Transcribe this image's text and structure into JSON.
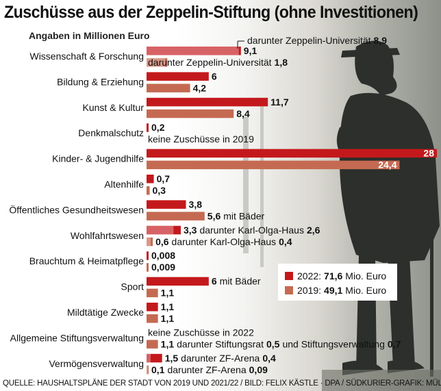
{
  "title": "Zuschüsse aus der Zeppelin-Stiftung (ohne Investitionen)",
  "subtitle": "Angaben in Millionen Euro",
  "footer": "QUELLE: HAUSHALTSPLÄNE DER STADT VON 2019 UND 2021/22 / BILD: FELIX KÄSTLE · DPA / SÜDKURIER-GRAFIK: MÜLLER",
  "colors": {
    "series_2022": "#c4191c",
    "series_2019": "#c56a52"
  },
  "legend": [
    {
      "year": "2022:",
      "value": "71,6",
      "unit": "Mio. Euro"
    },
    {
      "year": "2019:",
      "value": "49,1",
      "unit": "Mio. Euro"
    }
  ],
  "chart_data": {
    "type": "bar",
    "orientation": "horizontal",
    "title": "Zuschüsse aus der Zeppelin-Stiftung (ohne Investitionen)",
    "subtitle": "Angaben in Millionen Euro",
    "xlim": [
      0,
      28
    ],
    "grid": false,
    "legend_position": "bottom-right",
    "series": [
      {
        "name": "2022",
        "color": "#c4191c"
      },
      {
        "name": "2019",
        "color": "#c56a52"
      }
    ],
    "categories": [
      {
        "label": "Wissenschaft & Forschung",
        "v2022": 9.1,
        "t2022": "9,1",
        "sub2022": 8.9,
        "above2022": {
          "pre": "darunter Zeppelin-Universität",
          "val": "8,9"
        },
        "v2019": 2,
        "t2019": "2",
        "sub2019": 1.8,
        "n2019": {
          "pre": "darunter Zeppelin-Universität",
          "val": "1,8"
        }
      },
      {
        "label": "Bildung & Erziehung",
        "v2022": 6,
        "t2022": "6",
        "v2019": 4.2,
        "t2019": "4,2"
      },
      {
        "label": "Kunst & Kultur",
        "v2022": 11.7,
        "t2022": "11,7",
        "v2019": 8.4,
        "t2019": "8,4"
      },
      {
        "label": "Denkmalschutz",
        "v2022": 0.2,
        "t2022": "0,2",
        "v2019": 0,
        "t2019": "",
        "n2019": {
          "pre": "keine Zuschüsse in 2019"
        }
      },
      {
        "label": "Kinder- & Jugendhilfe",
        "v2022": 28,
        "t2022": "28",
        "v2019": 24.4,
        "t2019": "24,4"
      },
      {
        "label": "Altenhilfe",
        "v2022": 0.7,
        "t2022": "0,7",
        "v2019": 0.3,
        "t2019": "0,3"
      },
      {
        "label": "Öffentliches Gesundheitswesen",
        "v2022": 3.8,
        "t2022": "3,8",
        "v2019": 5.6,
        "t2019": "5,6",
        "n2019": {
          "post": "mit Bäder"
        }
      },
      {
        "label": "Wohlfahrtswesen",
        "v2022": 3.3,
        "t2022": "3,3",
        "sub2022": 2.6,
        "n2022": {
          "post": "darunter Karl-Olga-Haus",
          "val": "2,6"
        },
        "v2019": 0.6,
        "t2019": "0,6",
        "sub2019": 0.4,
        "n2019": {
          "post": "darunter Karl-Olga-Haus",
          "val": "0,4"
        }
      },
      {
        "label": "Brauchtum & Heimatpflege",
        "v2022": 0.008,
        "t2022": "0,008",
        "v2019": 0.009,
        "t2019": "0,009"
      },
      {
        "label": "Sport",
        "v2022": 6,
        "t2022": "6",
        "n2022": {
          "post": "mit Bäder"
        },
        "v2019": 1.1,
        "t2019": "1,1"
      },
      {
        "label": "Mildtätige Zwecke",
        "v2022": 1.1,
        "t2022": "1,1",
        "v2019": 1.1,
        "t2019": "1,1"
      },
      {
        "label": "Allgemeine Stiftungsverwaltung",
        "v2022": 0,
        "t2022": "",
        "n2022": {
          "pre": "keine Zuschüsse in 2022"
        },
        "v2019": 1.1,
        "t2019": "1,1",
        "n2019": {
          "post": "darunter Stiftungsrat",
          "val": "0,5",
          "post2": "und Stiftungsverwaltung",
          "val2": "0,7"
        }
      },
      {
        "label": "Vermögensverwaltung",
        "v2022": 1.5,
        "t2022": "1,5",
        "sub2022": 0.4,
        "n2022": {
          "post": "darunter ZF-Arena",
          "val": "0,4"
        },
        "v2019": 0.1,
        "t2019": "0,1",
        "sub2019": 0.09,
        "n2019": {
          "post": "darunter ZF-Arena",
          "val": "0,09"
        }
      }
    ]
  }
}
